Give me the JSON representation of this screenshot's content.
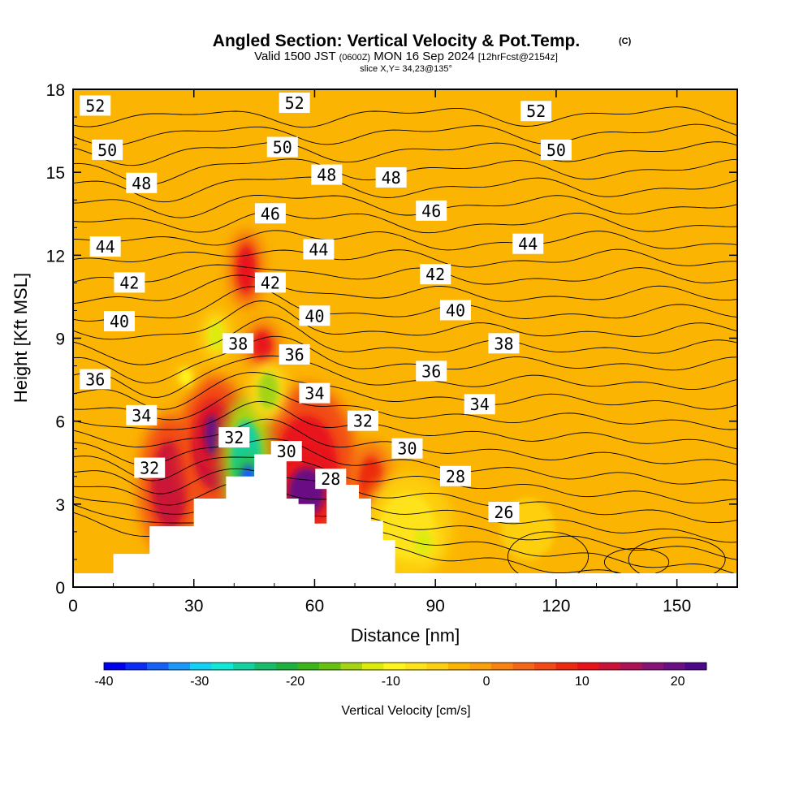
{
  "title": "Angled Section: Vertical Velocity & Pot.Temp.",
  "title_mark": "(C)",
  "subtitle": {
    "valid": "Valid 1500 JST",
    "utc": "(0600Z)",
    "date": "MON 16 Sep 2024",
    "forecast": "[12hrFcst@2154z]"
  },
  "slice_text": "slice X,Y= 34,23@135°",
  "colors": {
    "background_fill": "#fbb402",
    "terrain": "#ffffff",
    "contour": "#000000"
  },
  "chart_data": {
    "type": "heatmap",
    "xlabel": "Distance [nm]",
    "ylabel": "Height [Kft MSL]",
    "xlim": [
      0,
      165
    ],
    "ylim": [
      0,
      18
    ],
    "x_ticks": [
      "0",
      "30",
      "60",
      "90",
      "120",
      "150"
    ],
    "y_ticks": [
      "0",
      "3",
      "6",
      "9",
      "12",
      "15",
      "18"
    ],
    "colorbar": {
      "label": "Vertical Velocity [cm/s]",
      "min": -40,
      "max": 23,
      "ticks": [
        "-40",
        "-30",
        "-20",
        "-10",
        "0",
        "10",
        "20"
      ],
      "colors": [
        "#0000ee",
        "#0a2cf5",
        "#1660f8",
        "#1c98fa",
        "#14d0f5",
        "#12e8d6",
        "#15d0a0",
        "#18bc6c",
        "#20b040",
        "#3cb41c",
        "#68c012",
        "#a4d414",
        "#dcec0a",
        "#fff51a",
        "#fee31c",
        "#fdcf10",
        "#fbb402",
        "#fba00a",
        "#f88212",
        "#f56618",
        "#f14a16",
        "#ec2a10",
        "#e8121a",
        "#cc1238",
        "#ac1254",
        "#881478",
        "#6a1084",
        "#4c0888"
      ]
    },
    "terrain_profile": [
      [
        0,
        0.5
      ],
      [
        10,
        0.5
      ],
      [
        10,
        1.2
      ],
      [
        19,
        1.2
      ],
      [
        19,
        2.2
      ],
      [
        30,
        2.2
      ],
      [
        30,
        3.2
      ],
      [
        38,
        3.2
      ],
      [
        38,
        4.0
      ],
      [
        45,
        4.0
      ],
      [
        45,
        4.8
      ],
      [
        53,
        4.8
      ],
      [
        53,
        3.2
      ],
      [
        56,
        3.2
      ],
      [
        56,
        3.0
      ],
      [
        60,
        3.0
      ],
      [
        60,
        2.3
      ],
      [
        63,
        2.3
      ],
      [
        63,
        3.7
      ],
      [
        71,
        3.7
      ],
      [
        71,
        3.2
      ],
      [
        74,
        3.2
      ],
      [
        74,
        2.4
      ],
      [
        77,
        2.4
      ],
      [
        77,
        1.7
      ],
      [
        80,
        1.7
      ],
      [
        80,
        0.5
      ],
      [
        165,
        0.5
      ]
    ],
    "velocity_features": [
      {
        "kind": "updraft",
        "x": [
          18,
          30
        ],
        "y": [
          1.6,
          5.8
        ],
        "value": 12
      },
      {
        "kind": "updraft",
        "x": [
          28,
          42
        ],
        "y": [
          3.0,
          7.2
        ],
        "value": 13
      },
      {
        "kind": "updraft",
        "x": [
          32,
          37
        ],
        "y": [
          4.5,
          6.5
        ],
        "value": 20
      },
      {
        "kind": "updraft",
        "x": [
          48,
          68
        ],
        "y": [
          2.0,
          6.8
        ],
        "value": 11
      },
      {
        "kind": "updraft",
        "x": [
          52,
          64
        ],
        "y": [
          2.3,
          4.6
        ],
        "value": 20
      },
      {
        "kind": "updraft",
        "x": [
          70,
          78
        ],
        "y": [
          2.6,
          5.0
        ],
        "value": 8
      },
      {
        "kind": "updraft",
        "x": [
          40,
          46
        ],
        "y": [
          10.4,
          12.6
        ],
        "value": 10
      },
      {
        "kind": "updraft",
        "x": [
          44,
          50
        ],
        "y": [
          8.0,
          9.4
        ],
        "value": 10
      },
      {
        "kind": "downdraft",
        "x": [
          38,
          48
        ],
        "y": [
          2.8,
          6.5
        ],
        "value": -25
      },
      {
        "kind": "downdraft",
        "x": [
          41,
          46
        ],
        "y": [
          3.2,
          4.6
        ],
        "value": -35
      },
      {
        "kind": "downdraft",
        "x": [
          45,
          52
        ],
        "y": [
          6.2,
          8.0
        ],
        "value": -14
      },
      {
        "kind": "downdraft",
        "x": [
          33,
          38
        ],
        "y": [
          8.4,
          9.8
        ],
        "value": -12
      },
      {
        "kind": "downdraft",
        "x": [
          26,
          30
        ],
        "y": [
          7.2,
          8.0
        ],
        "value": -10
      },
      {
        "kind": "downdraft",
        "x": [
          74,
          92
        ],
        "y": [
          0.6,
          3.8
        ],
        "value": -8
      },
      {
        "kind": "downdraft",
        "x": [
          84,
          90
        ],
        "y": [
          1.0,
          2.2
        ],
        "value": -12
      },
      {
        "kind": "downdraft",
        "x": [
          104,
          122
        ],
        "y": [
          0.6,
          3.6
        ],
        "value": -6
      },
      {
        "kind": "downdraft",
        "x": [
          142,
          160
        ],
        "y": [
          0.6,
          2.2
        ],
        "value": -4
      }
    ],
    "theta_contours": [
      {
        "value": 52,
        "base": 17.05
      },
      {
        "value": 51,
        "base": 16.4
      },
      {
        "value": 50,
        "base": 15.75
      },
      {
        "value": 49,
        "base": 15.1
      },
      {
        "value": 48,
        "base": 14.45
      },
      {
        "value": 47,
        "base": 13.8
      },
      {
        "value": 46,
        "base": 13.15
      },
      {
        "value": 45,
        "base": 12.5
      },
      {
        "value": 44,
        "base": 11.85
      },
      {
        "value": 43,
        "base": 11.2
      },
      {
        "value": 42,
        "base": 10.55
      },
      {
        "value": 41,
        "base": 9.9
      },
      {
        "value": 40,
        "base": 9.25
      },
      {
        "value": 39,
        "base": 8.65
      },
      {
        "value": 38,
        "base": 8.05
      },
      {
        "value": 37,
        "base": 7.45
      },
      {
        "value": 36,
        "base": 6.85
      },
      {
        "value": 35,
        "base": 6.25
      },
      {
        "value": 34,
        "base": 5.65
      },
      {
        "value": 33,
        "base": 5.05
      },
      {
        "value": 32,
        "base": 4.45
      },
      {
        "value": 31,
        "base": 3.9
      },
      {
        "value": 30,
        "base": 3.35
      },
      {
        "value": 29,
        "base": 2.8
      },
      {
        "value": 28,
        "base": 2.3
      },
      {
        "value": 27,
        "base": 1.8
      },
      {
        "value": 26,
        "base": 1.3
      }
    ],
    "contour_labels": [
      {
        "text": "52",
        "x": 5.5,
        "y": 17.4
      },
      {
        "text": "52",
        "x": 55,
        "y": 17.5
      },
      {
        "text": "52",
        "x": 115,
        "y": 17.2
      },
      {
        "text": "50",
        "x": 8.5,
        "y": 15.8
      },
      {
        "text": "50",
        "x": 52,
        "y": 15.9
      },
      {
        "text": "50",
        "x": 120,
        "y": 15.8
      },
      {
        "text": "48",
        "x": 17,
        "y": 14.6
      },
      {
        "text": "48",
        "x": 63,
        "y": 14.9
      },
      {
        "text": "48",
        "x": 79,
        "y": 14.8
      },
      {
        "text": "46",
        "x": 49,
        "y": 13.5
      },
      {
        "text": "46",
        "x": 89,
        "y": 13.6
      },
      {
        "text": "44",
        "x": 8,
        "y": 12.3
      },
      {
        "text": "44",
        "x": 61,
        "y": 12.2
      },
      {
        "text": "44",
        "x": 113,
        "y": 12.4
      },
      {
        "text": "42",
        "x": 14,
        "y": 11.0
      },
      {
        "text": "42",
        "x": 49,
        "y": 11.0
      },
      {
        "text": "42",
        "x": 90,
        "y": 11.3
      },
      {
        "text": "40",
        "x": 11.5,
        "y": 9.6
      },
      {
        "text": "40",
        "x": 60,
        "y": 9.8
      },
      {
        "text": "40",
        "x": 95,
        "y": 10.0
      },
      {
        "text": "38",
        "x": 41,
        "y": 8.8
      },
      {
        "text": "38",
        "x": 107,
        "y": 8.8
      },
      {
        "text": "36",
        "x": 5.5,
        "y": 7.5
      },
      {
        "text": "36",
        "x": 55,
        "y": 8.4
      },
      {
        "text": "36",
        "x": 89,
        "y": 7.8
      },
      {
        "text": "34",
        "x": 17,
        "y": 6.2
      },
      {
        "text": "34",
        "x": 60,
        "y": 7.0
      },
      {
        "text": "34",
        "x": 101,
        "y": 6.6
      },
      {
        "text": "32",
        "x": 19,
        "y": 4.3
      },
      {
        "text": "32",
        "x": 40,
        "y": 5.4
      },
      {
        "text": "32",
        "x": 72,
        "y": 6.0
      },
      {
        "text": "30",
        "x": 53,
        "y": 4.9
      },
      {
        "text": "30",
        "x": 83,
        "y": 5.0
      },
      {
        "text": "28",
        "x": 64,
        "y": 3.9
      },
      {
        "text": "28",
        "x": 95,
        "y": 4.0
      },
      {
        "text": "26",
        "x": 107,
        "y": 2.7
      }
    ]
  }
}
